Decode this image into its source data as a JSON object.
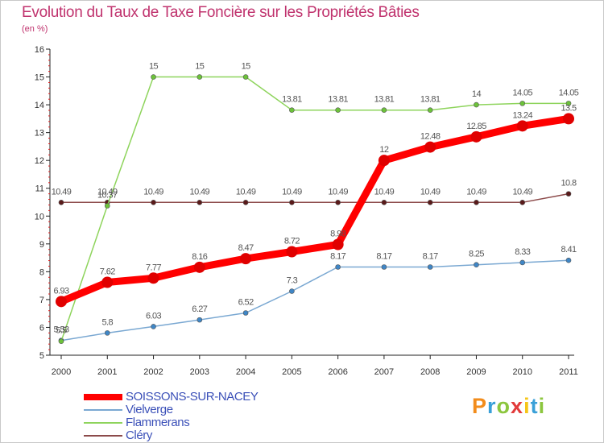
{
  "title": "Evolution du Taux de Taxe Foncière sur les Propriétés Bâties",
  "unit": "(en %)",
  "logo": {
    "letters": [
      "P",
      "r",
      "o",
      "x",
      "i",
      "t",
      "i"
    ],
    "colors": [
      "#f28c1c",
      "#3aa0d8",
      "#8cc63e",
      "#e23b3b",
      "#f5c518",
      "#3aa0d8",
      "#8cc63e"
    ]
  },
  "chart_data": {
    "type": "line",
    "title": "Evolution du Taux de Taxe Foncière sur les Propriétés Bâties",
    "ylabel": "(en %)",
    "xlabel": "",
    "x": [
      "2000",
      "2001",
      "2002",
      "2003",
      "2004",
      "2005",
      "2006",
      "2007",
      "2008",
      "2009",
      "2010",
      "2011"
    ],
    "ylim": [
      5,
      16
    ],
    "yticks": [
      5,
      6,
      7,
      8,
      9,
      10,
      11,
      12,
      13,
      14,
      15,
      16
    ],
    "grid": false,
    "legend_position": "bottom-left",
    "series": [
      {
        "name": "SOISSONS-SUR-NACEY",
        "color": "#ff0000",
        "marker": "#e00000",
        "values": [
          6.93,
          7.62,
          7.77,
          8.16,
          8.47,
          8.72,
          8.98,
          12,
          12.48,
          12.85,
          13.24,
          13.5
        ],
        "labels": [
          "6.93",
          "7.62",
          "7.77",
          "8.16",
          "8.47",
          "8.72",
          "8.98",
          "12",
          "12.48",
          "12.85",
          "13.24",
          "13.5"
        ]
      },
      {
        "name": "Vielverge",
        "color": "#7aa8d2",
        "marker": "#3f86c6",
        "values": [
          5.53,
          5.8,
          6.03,
          6.27,
          6.52,
          7.3,
          8.17,
          8.17,
          8.17,
          8.25,
          8.33,
          8.41
        ],
        "labels": [
          "5.53",
          "5.8",
          "6.03",
          "6.27",
          "6.52",
          "7.3",
          "8.17",
          "8.17",
          "8.17",
          "8.25",
          "8.33",
          "8.41"
        ]
      },
      {
        "name": "Flammerans",
        "color": "#8ed45c",
        "marker": "#6cc23a",
        "values": [
          5.5,
          10.37,
          15,
          15,
          15,
          13.81,
          13.81,
          13.81,
          13.81,
          14,
          14.05,
          14.05
        ],
        "labels": [
          "5.5",
          "10.37",
          "15",
          "15",
          "15",
          "13.81",
          "13.81",
          "13.81",
          "13.81",
          "14",
          "14.05",
          "14.05"
        ]
      },
      {
        "name": "Cléry",
        "color": "#8c4a4a",
        "marker": "#5a1a1a",
        "values": [
          10.49,
          10.49,
          10.49,
          10.49,
          10.49,
          10.49,
          10.49,
          10.49,
          10.49,
          10.49,
          10.49,
          10.8
        ],
        "labels": [
          "10.49",
          "10.49",
          "10.49",
          "10.49",
          "10.49",
          "10.49",
          "10.49",
          "10.49",
          "10.49",
          "10.49",
          "10.49",
          "10.8"
        ]
      }
    ]
  }
}
